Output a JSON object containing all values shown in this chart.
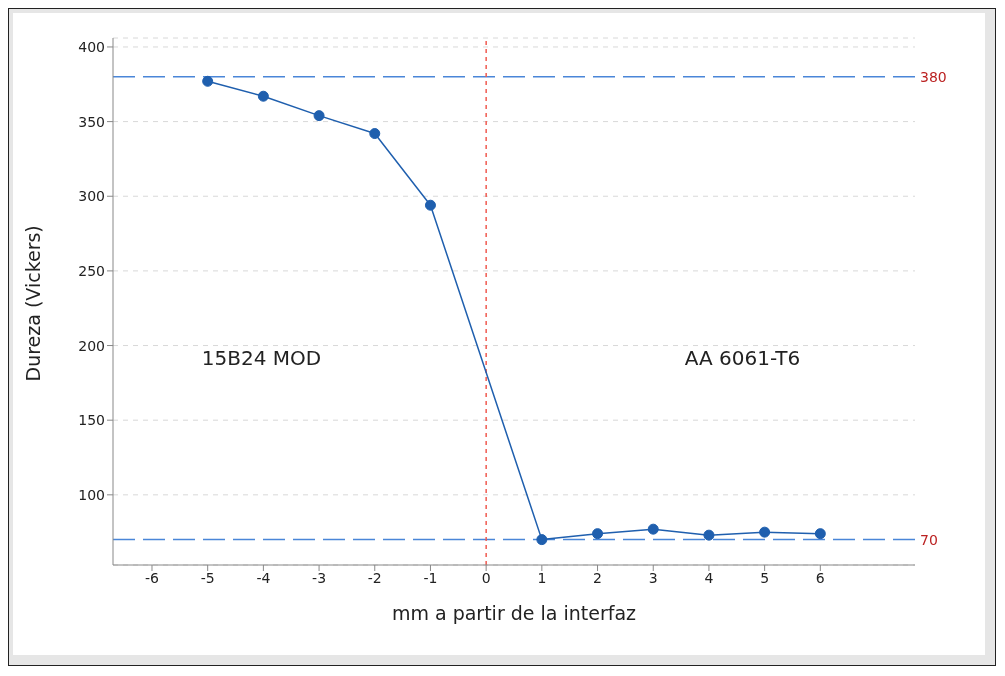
{
  "chart_data": {
    "type": "line",
    "xlabel": "mm a partir de la interfaz",
    "ylabel": "Dureza (Vickers)",
    "x": [
      -5,
      -4,
      -3,
      -2,
      -1,
      1,
      2,
      3,
      4,
      5,
      6
    ],
    "series": [
      {
        "color": "#1f5fae",
        "values": [
          377,
          367,
          354,
          342,
          294,
          70,
          74,
          77,
          73,
          75,
          74
        ]
      }
    ],
    "xlim": [
      -6.7,
      7.7
    ],
    "xticks": [
      -6,
      -5,
      -4,
      -3,
      -2,
      -1,
      0,
      1,
      2,
      3,
      4,
      5,
      6
    ],
    "ylim": [
      53,
      406
    ],
    "yticks": [
      100,
      150,
      200,
      250,
      300,
      350,
      400
    ],
    "grid": "y",
    "marker": "circle",
    "line_style": "solid",
    "ref_lines": [
      {
        "axis": "y",
        "value": 380,
        "label": "380",
        "color": "#4a86d8",
        "line_style": "dashed"
      },
      {
        "axis": "y",
        "value": 70,
        "label": "70",
        "color": "#4a86d8",
        "line_style": "dashed"
      },
      {
        "axis": "x",
        "value": 0,
        "color": "#f05a50",
        "line_style": "dotted"
      }
    ],
    "annotations": [
      "15B24 MOD",
      "AA 6061-T6"
    ]
  }
}
